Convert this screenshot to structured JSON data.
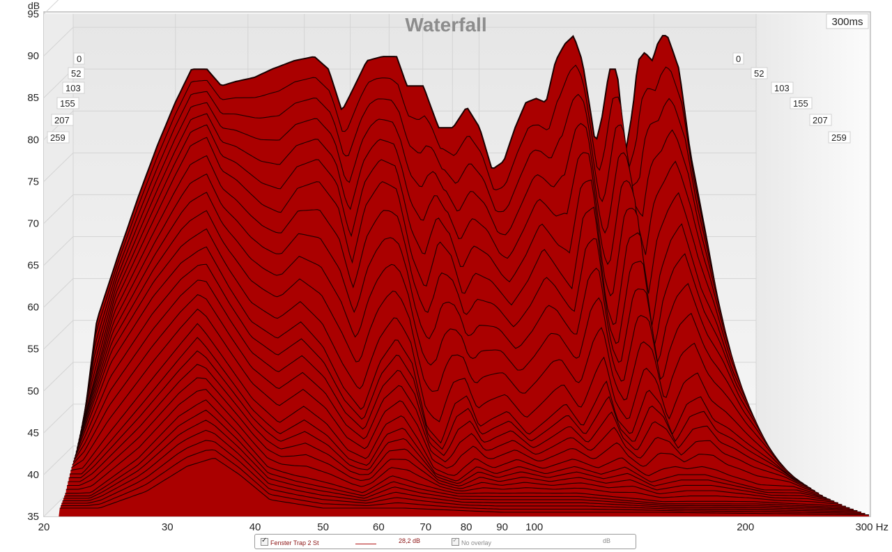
{
  "chart_data": {
    "type": "waterfall",
    "title": "Waterfall",
    "time_label": "300ms",
    "ylabel": "dB",
    "xlabel": "Hz",
    "ylim": [
      35,
      95
    ],
    "y_ticks": [
      "35",
      "40",
      "45",
      "50",
      "55",
      "60",
      "65",
      "70",
      "75",
      "80",
      "85",
      "90",
      "95"
    ],
    "xlim": [
      20,
      300
    ],
    "x_scale": "log",
    "x_ticks": [
      {
        "value": 20,
        "label": "20"
      },
      {
        "value": 30,
        "label": "30"
      },
      {
        "value": 40,
        "label": "40"
      },
      {
        "value": 50,
        "label": "50"
      },
      {
        "value": 60,
        "label": "60"
      },
      {
        "value": 70,
        "label": "70"
      },
      {
        "value": 80,
        "label": "80"
      },
      {
        "value": 90,
        "label": "90"
      },
      {
        "value": 100,
        "label": "100"
      },
      {
        "value": 200,
        "label": "200"
      },
      {
        "value": 300,
        "label": "300 Hz"
      }
    ],
    "time_slices_ms": [
      "0",
      "52",
      "103",
      "155",
      "207",
      "259"
    ],
    "fill_color": "#aa0000",
    "line_color": "#1a0000",
    "series": [
      {
        "time_ms": 0,
        "points": [
          [
            21,
            44
          ],
          [
            22,
            55
          ],
          [
            24,
            63
          ],
          [
            26,
            70
          ],
          [
            28,
            76
          ],
          [
            30,
            81
          ],
          [
            32,
            85
          ],
          [
            34,
            85
          ],
          [
            36,
            83
          ],
          [
            38,
            83.5
          ],
          [
            41,
            84
          ],
          [
            44,
            85
          ],
          [
            48,
            86
          ],
          [
            52,
            86.5
          ],
          [
            55,
            85
          ],
          [
            58,
            80
          ],
          [
            60,
            82
          ],
          [
            64,
            86
          ],
          [
            68,
            86.5
          ],
          [
            72,
            86.5
          ],
          [
            75,
            83
          ],
          [
            80,
            83
          ],
          [
            85,
            78
          ],
          [
            90,
            78
          ],
          [
            95,
            80.5
          ],
          [
            100,
            78
          ],
          [
            105,
            73
          ],
          [
            110,
            74
          ],
          [
            115,
            78
          ],
          [
            120,
            81
          ],
          [
            125,
            81.5
          ],
          [
            130,
            81
          ],
          [
            135,
            86
          ],
          [
            140,
            88
          ],
          [
            145,
            89
          ],
          [
            150,
            86
          ],
          [
            155,
            80
          ],
          [
            158,
            76
          ],
          [
            162,
            79
          ],
          [
            167,
            85
          ],
          [
            172,
            85
          ],
          [
            178,
            75
          ],
          [
            183,
            80
          ],
          [
            187,
            86
          ],
          [
            192,
            87
          ],
          [
            198,
            86
          ],
          [
            202,
            88
          ],
          [
            206,
            89
          ],
          [
            210,
            89
          ],
          [
            215,
            87
          ],
          [
            220,
            85
          ],
          [
            230,
            75
          ],
          [
            245,
            65
          ],
          [
            260,
            55
          ],
          [
            275,
            47
          ],
          [
            290,
            40
          ],
          [
            300,
            36
          ]
        ]
      },
      {
        "time_ms": 52,
        "points": [
          [
            21,
            42
          ],
          [
            24,
            58
          ],
          [
            27,
            66
          ],
          [
            30,
            73
          ],
          [
            32,
            77
          ],
          [
            34,
            78
          ],
          [
            36,
            74
          ],
          [
            38,
            73
          ],
          [
            42,
            70
          ],
          [
            45,
            69
          ],
          [
            48,
            72
          ],
          [
            52,
            73
          ],
          [
            56,
            70
          ],
          [
            59,
            63
          ],
          [
            62,
            70
          ],
          [
            66,
            73
          ],
          [
            70,
            72
          ],
          [
            74,
            64
          ],
          [
            78,
            60
          ],
          [
            82,
            66
          ],
          [
            86,
            64
          ],
          [
            90,
            59
          ],
          [
            94,
            62
          ],
          [
            100,
            61
          ],
          [
            108,
            58
          ],
          [
            115,
            61
          ],
          [
            122,
            65
          ],
          [
            130,
            62
          ],
          [
            136,
            60
          ],
          [
            142,
            69
          ],
          [
            148,
            70
          ],
          [
            155,
            58
          ],
          [
            160,
            55
          ],
          [
            168,
            66
          ],
          [
            176,
            67
          ],
          [
            184,
            55
          ],
          [
            190,
            62
          ],
          [
            198,
            66
          ],
          [
            206,
            68
          ],
          [
            214,
            64
          ],
          [
            222,
            60
          ],
          [
            235,
            56
          ],
          [
            250,
            50
          ],
          [
            265,
            46
          ],
          [
            280,
            42
          ],
          [
            300,
            38
          ]
        ]
      },
      {
        "time_ms": 103,
        "points": [
          [
            21,
            40
          ],
          [
            24,
            52
          ],
          [
            28,
            60
          ],
          [
            31,
            64
          ],
          [
            34,
            66
          ],
          [
            37,
            61
          ],
          [
            40,
            57
          ],
          [
            44,
            55
          ],
          [
            48,
            57
          ],
          [
            52,
            54
          ],
          [
            56,
            49
          ],
          [
            60,
            46
          ],
          [
            64,
            52
          ],
          [
            68,
            55
          ],
          [
            72,
            52
          ],
          [
            76,
            44
          ],
          [
            80,
            42
          ],
          [
            84,
            47
          ],
          [
            88,
            48
          ],
          [
            92,
            44
          ],
          [
            96,
            45
          ],
          [
            102,
            46
          ],
          [
            110,
            43
          ],
          [
            118,
            45
          ],
          [
            126,
            47
          ],
          [
            134,
            44
          ],
          [
            140,
            47
          ],
          [
            146,
            50
          ],
          [
            152,
            45
          ],
          [
            160,
            43
          ],
          [
            170,
            49
          ],
          [
            178,
            47
          ],
          [
            186,
            43
          ],
          [
            196,
            47
          ],
          [
            206,
            48
          ],
          [
            216,
            45
          ],
          [
            228,
            44
          ],
          [
            245,
            42
          ],
          [
            265,
            40
          ],
          [
            285,
            38
          ],
          [
            300,
            37
          ]
        ]
      },
      {
        "time_ms": 155,
        "points": [
          [
            22,
            39
          ],
          [
            26,
            46
          ],
          [
            30,
            52
          ],
          [
            33,
            56
          ],
          [
            36,
            52
          ],
          [
            40,
            47
          ],
          [
            44,
            44
          ],
          [
            48,
            46
          ],
          [
            52,
            44
          ],
          [
            56,
            41
          ],
          [
            60,
            40
          ],
          [
            64,
            44
          ],
          [
            68,
            45
          ],
          [
            72,
            42
          ],
          [
            76,
            39
          ],
          [
            82,
            38
          ],
          [
            88,
            40
          ],
          [
            94,
            39
          ],
          [
            102,
            40
          ],
          [
            112,
            39
          ],
          [
            124,
            40
          ],
          [
            136,
            39
          ],
          [
            148,
            40
          ],
          [
            162,
            38
          ],
          [
            178,
            39
          ],
          [
            196,
            39
          ],
          [
            216,
            38
          ],
          [
            240,
            37
          ],
          [
            270,
            37
          ],
          [
            300,
            36
          ]
        ]
      },
      {
        "time_ms": 207,
        "points": [
          [
            23,
            37
          ],
          [
            27,
            41
          ],
          [
            31,
            46
          ],
          [
            34,
            48
          ],
          [
            38,
            44
          ],
          [
            42,
            40
          ],
          [
            46,
            39
          ],
          [
            52,
            38
          ],
          [
            58,
            37
          ],
          [
            64,
            39
          ],
          [
            70,
            38
          ],
          [
            80,
            37
          ],
          [
            95,
            37
          ],
          [
            120,
            37
          ],
          [
            160,
            36
          ],
          [
            220,
            36
          ],
          [
            300,
            35.5
          ]
        ]
      },
      {
        "time_ms": 259,
        "points": [
          [
            24,
            36
          ],
          [
            28,
            38
          ],
          [
            32,
            41
          ],
          [
            35,
            42
          ],
          [
            38,
            40
          ],
          [
            42,
            37
          ],
          [
            50,
            36
          ],
          [
            65,
            36
          ],
          [
            90,
            35.5
          ],
          [
            150,
            35.5
          ],
          [
            300,
            35.2
          ]
        ]
      }
    ]
  },
  "legend": {
    "item1_label": "Fenster Trap 2 St",
    "item1_value": "28,2 dB",
    "item2_label": "No overlay",
    "item2_unit": "dB"
  }
}
